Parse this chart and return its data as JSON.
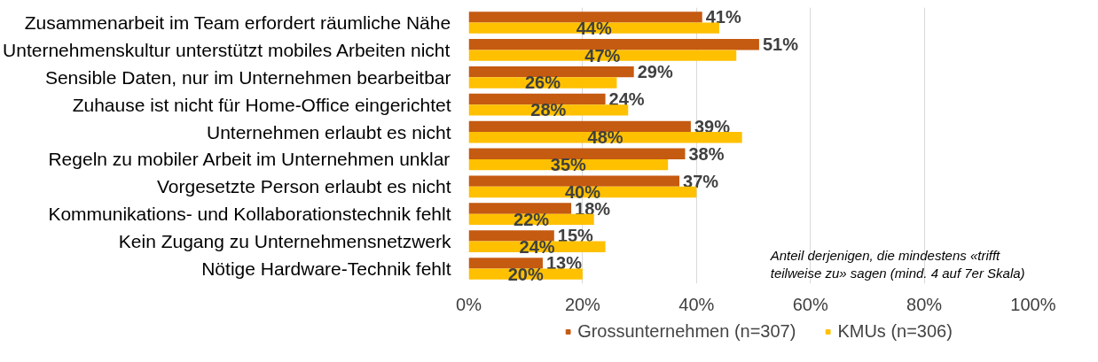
{
  "chart_data": {
    "type": "bar",
    "orientation": "horizontal",
    "categories": [
      "Zusammenarbeit im Team erfordert räumliche Nähe",
      "Unternehmenskultur unterstützt mobiles Arbeiten nicht",
      "Sensible Daten, nur im Unternehmen bearbeitbar",
      "Zuhause ist nicht für Home-Office eingerichtet",
      "Unternehmen erlaubt es nicht",
      "Regeln zu mobiler Arbeit im Unternehmen unklar",
      "Vorgesetzte Person erlaubt es nicht",
      "Kommunikations- und Kollaborationstechnik fehlt",
      "Kein Zugang zu Unternehmensnetzwerk",
      "Nötige Hardware-Technik fehlt"
    ],
    "series": [
      {
        "name": "Grossunternehmen (n=307)",
        "color": "#c55a11",
        "values": [
          41,
          51,
          29,
          24,
          39,
          38,
          37,
          18,
          15,
          13
        ],
        "value_labels": [
          "41%",
          "51%",
          "29%",
          "24%",
          "39%",
          "38%",
          "37%",
          "18%",
          "15%",
          "13%"
        ]
      },
      {
        "name": "KMUs (n=306)",
        "color": "#ffc000",
        "values": [
          44,
          47,
          26,
          28,
          48,
          35,
          40,
          22,
          24,
          20
        ],
        "value_labels": [
          "44%",
          "47%",
          "26%",
          "28%",
          "48%",
          "35%",
          "40%",
          "22%",
          "24%",
          "20%"
        ]
      }
    ],
    "xlim": [
      0,
      100
    ],
    "xticks": [
      {
        "value": 0,
        "label": "0%"
      },
      {
        "value": 20,
        "label": "20%"
      },
      {
        "value": 40,
        "label": "40%"
      },
      {
        "value": 60,
        "label": "60%"
      },
      {
        "value": 80,
        "label": "80%"
      },
      {
        "value": 100,
        "label": "100%"
      }
    ],
    "grid": "x",
    "legend": "bottom",
    "annotations": [
      "Anteil derjenigen, die mindestens «trifft\nteilweise zu» sagen (mind. 4 auf 7er Skala)"
    ]
  }
}
